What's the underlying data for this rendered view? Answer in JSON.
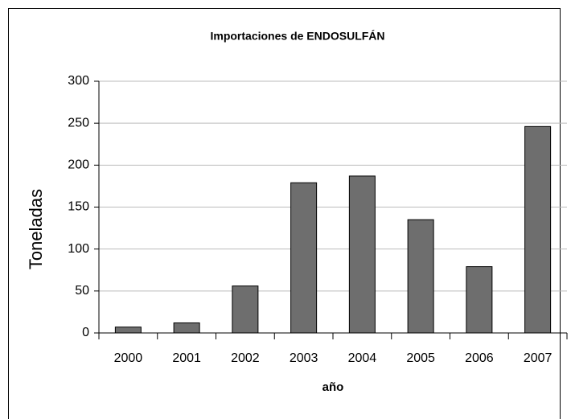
{
  "chart_data": {
    "type": "bar",
    "title": "Importaciones de ENDOSULFÁN",
    "x_label": "año",
    "y_label": "Toneladas",
    "categories": [
      "2000",
      "2001",
      "2002",
      "2003",
      "2004",
      "2005",
      "2006",
      "2007"
    ],
    "values": [
      7,
      12,
      56,
      179,
      187,
      135,
      79,
      246
    ],
    "color": "#6e6e6e",
    "ylim": [
      0,
      300
    ],
    "yticks": [
      0,
      50,
      100,
      150,
      200,
      250,
      300
    ],
    "grid": true
  }
}
